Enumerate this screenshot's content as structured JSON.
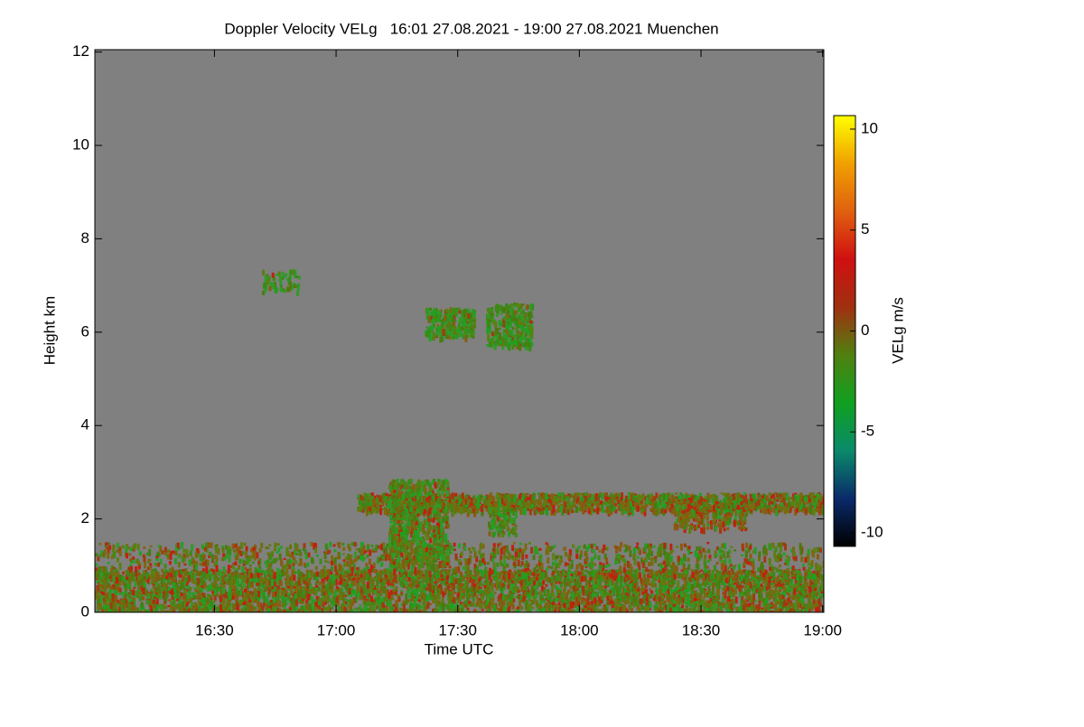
{
  "chart_data": {
    "type": "heatmap",
    "title": "Doppler Velocity VELg   16:01 27.08.2021 - 19:00 27.08.2021 Muenchen",
    "xlabel": "Time UTC",
    "ylabel": "Height km",
    "colorbar_label": "VELg m/s",
    "xlim": [
      960.5,
      1140.3
    ],
    "xticks": [
      {
        "value": 990,
        "label": "16:30"
      },
      {
        "value": 1020,
        "label": "17:00"
      },
      {
        "value": 1050,
        "label": "17:30"
      },
      {
        "value": 1080,
        "label": "18:00"
      },
      {
        "value": 1110,
        "label": "18:30"
      },
      {
        "value": 1140,
        "label": "19:00"
      }
    ],
    "ylim": [
      0,
      12.05
    ],
    "yticks": [
      0,
      2,
      4,
      6,
      8,
      10,
      12
    ],
    "clim": [
      -10.67,
      10.67
    ],
    "cticks": [
      -10,
      -5,
      0,
      5,
      10
    ],
    "background": "#808080",
    "colormap": [
      "#000000",
      "#0a2a6a",
      "#0a8a6a",
      "#10a020",
      "#508010",
      "#a03010",
      "#d01010",
      "#e06010",
      "#f0a000",
      "#ffff00"
    ]
  }
}
